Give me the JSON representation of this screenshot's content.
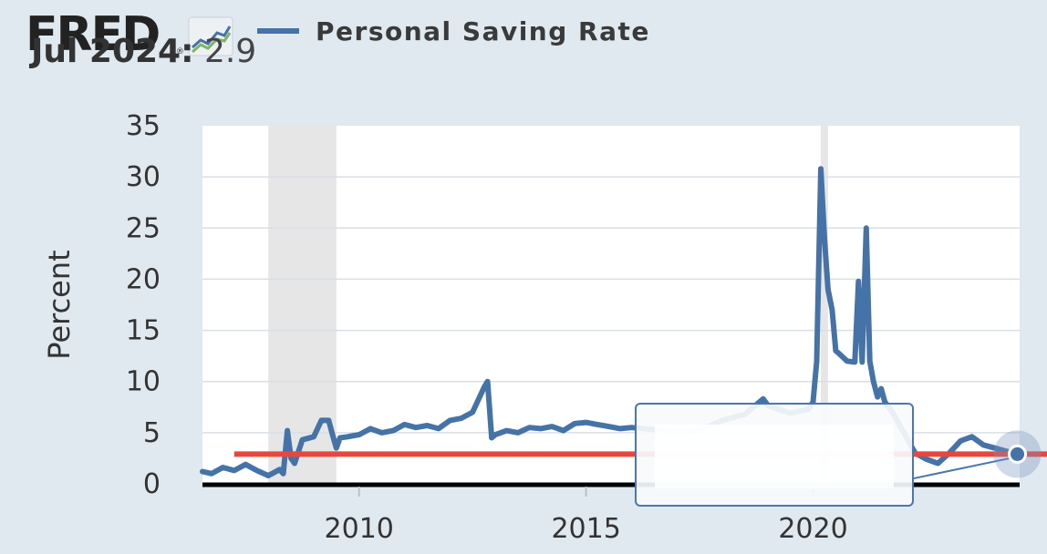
{
  "header": {
    "logo_text": "FRED",
    "logo_mark": "®",
    "logo_icon": "fred-chart-icon",
    "legend_label": "Personal Saving Rate",
    "legend_color": "#4572a7"
  },
  "tooltip": {
    "date": "Jul 2024:",
    "value": "2.9"
  },
  "colors": {
    "background": "#e1e9f0",
    "plot": "#ffffff",
    "series": "#4572a7",
    "reference_line": "#e8473f",
    "recession": "#e6e6e6",
    "grid": "#d9dfe6"
  },
  "chart_data": {
    "type": "line",
    "title": "Personal Saving Rate",
    "xlabel": "",
    "ylabel": "Percent",
    "xlim": [
      2006.55,
      2024.55
    ],
    "ylim": [
      0,
      35
    ],
    "x_ticks": [
      2010,
      2015,
      2020
    ],
    "y_ticks": [
      0,
      5,
      10,
      15,
      20,
      25,
      30,
      35
    ],
    "grid": true,
    "recessions": [
      [
        2008.0,
        2009.5
      ],
      [
        2020.17,
        2020.33
      ]
    ],
    "reference_line": {
      "y": 2.9,
      "x_start": 2007.25,
      "color": "#e8473f"
    },
    "highlight_point": {
      "x": 2024.5,
      "y": 2.9
    },
    "series": [
      {
        "name": "Personal Saving Rate",
        "color": "#4572a7",
        "x": [
          2006.55,
          2006.75,
          2007.0,
          2007.25,
          2007.5,
          2007.75,
          2008.0,
          2008.25,
          2008.33,
          2008.42,
          2008.5,
          2008.58,
          2008.75,
          2009.0,
          2009.17,
          2009.33,
          2009.42,
          2009.5,
          2009.58,
          2009.75,
          2010.0,
          2010.25,
          2010.5,
          2010.75,
          2011.0,
          2011.25,
          2011.5,
          2011.75,
          2012.0,
          2012.25,
          2012.5,
          2012.75,
          2012.83,
          2012.92,
          2013.0,
          2013.25,
          2013.5,
          2013.75,
          2014.0,
          2014.25,
          2014.5,
          2014.75,
          2015.0,
          2015.25,
          2015.5,
          2015.75,
          2016.0,
          2016.5,
          2017.0,
          2017.5,
          2018.0,
          2018.5,
          2018.9,
          2019.0,
          2019.1,
          2019.5,
          2019.9,
          2020.0,
          2020.08,
          2020.17,
          2020.25,
          2020.33,
          2020.42,
          2020.5,
          2020.58,
          2020.75,
          2020.92,
          2021.0,
          2021.08,
          2021.17,
          2021.25,
          2021.33,
          2021.42,
          2021.5,
          2021.58,
          2021.75,
          2022.0,
          2022.25,
          2022.5,
          2022.75,
          2023.0,
          2023.25,
          2023.5,
          2023.75,
          2024.0,
          2024.25,
          2024.5
        ],
        "y": [
          1.2,
          1.0,
          1.6,
          1.3,
          1.9,
          1.3,
          0.8,
          1.4,
          1.0,
          5.2,
          2.5,
          2.0,
          4.3,
          4.6,
          6.2,
          6.2,
          4.7,
          3.5,
          4.5,
          4.6,
          4.8,
          5.4,
          5.0,
          5.2,
          5.8,
          5.5,
          5.7,
          5.4,
          6.2,
          6.4,
          7.0,
          9.4,
          10.0,
          4.5,
          4.8,
          5.2,
          5.0,
          5.5,
          5.4,
          5.6,
          5.2,
          5.9,
          6.0,
          5.8,
          5.6,
          5.4,
          5.5,
          5.3,
          5.0,
          5.2,
          6.2,
          6.8,
          8.3,
          7.7,
          7.5,
          6.9,
          7.3,
          8.0,
          12.0,
          30.8,
          24.0,
          19.0,
          17.0,
          13.0,
          12.7,
          12.0,
          11.9,
          19.8,
          11.9,
          25.0,
          12.0,
          10.0,
          8.5,
          9.3,
          8.0,
          7.0,
          5.0,
          3.0,
          2.4,
          2.0,
          3.0,
          4.2,
          4.6,
          3.8,
          3.5,
          3.2,
          2.9
        ]
      }
    ]
  }
}
